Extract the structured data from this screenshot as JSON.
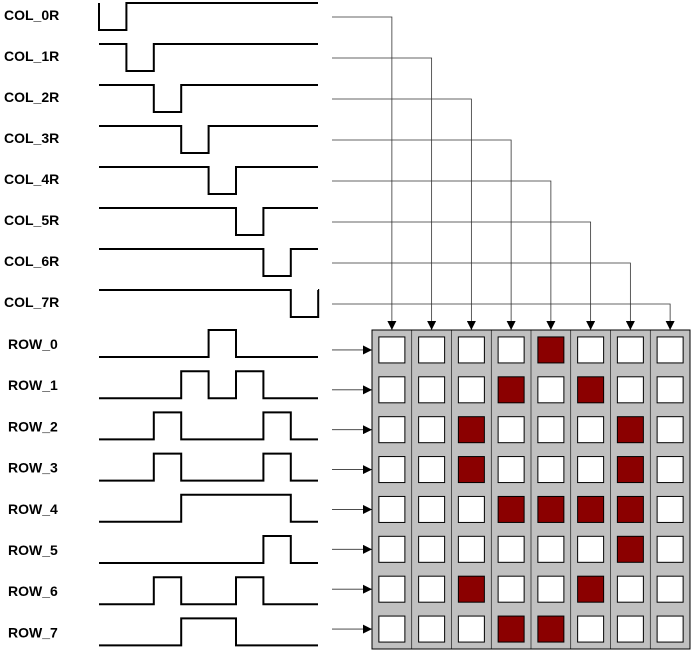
{
  "columns": [
    {
      "label": "COL_0R",
      "low_slot": 0
    },
    {
      "label": "COL_1R",
      "low_slot": 1
    },
    {
      "label": "COL_2R",
      "low_slot": 2
    },
    {
      "label": "COL_3R",
      "low_slot": 3
    },
    {
      "label": "COL_4R",
      "low_slot": 4
    },
    {
      "label": "COL_5R",
      "low_slot": 5
    },
    {
      "label": "COL_6R",
      "low_slot": 6
    },
    {
      "label": "COL_7R",
      "low_slot": 7
    }
  ],
  "rows": [
    {
      "label": "ROW_0",
      "high_slots": [
        4
      ]
    },
    {
      "label": "ROW_1",
      "high_slots": [
        3,
        5
      ]
    },
    {
      "label": "ROW_2",
      "high_slots": [
        2,
        6
      ]
    },
    {
      "label": "ROW_3",
      "high_slots": [
        2,
        6
      ]
    },
    {
      "label": "ROW_4",
      "high_slots": [
        3,
        4,
        5,
        6
      ]
    },
    {
      "label": "ROW_5",
      "high_slots": [
        6
      ]
    },
    {
      "label": "ROW_6",
      "high_slots": [
        2,
        5
      ]
    },
    {
      "label": "ROW_7",
      "high_slots": [
        3,
        4
      ]
    }
  ],
  "matrix": [
    [
      0,
      0,
      0,
      0,
      1,
      0,
      0,
      0
    ],
    [
      0,
      0,
      0,
      1,
      0,
      1,
      0,
      0
    ],
    [
      0,
      0,
      1,
      0,
      0,
      0,
      1,
      0
    ],
    [
      0,
      0,
      1,
      0,
      0,
      0,
      1,
      0
    ],
    [
      0,
      0,
      0,
      1,
      1,
      1,
      1,
      0
    ],
    [
      0,
      0,
      0,
      0,
      0,
      0,
      1,
      0
    ],
    [
      0,
      0,
      1,
      0,
      0,
      1,
      0,
      0
    ],
    [
      0,
      0,
      0,
      1,
      1,
      0,
      0,
      0
    ]
  ],
  "colors": {
    "led_on": "#8b0000",
    "led_off": "#ffffff",
    "grid_background": "#c0c0c0",
    "wire": "#333333",
    "waveform": "#000000"
  }
}
